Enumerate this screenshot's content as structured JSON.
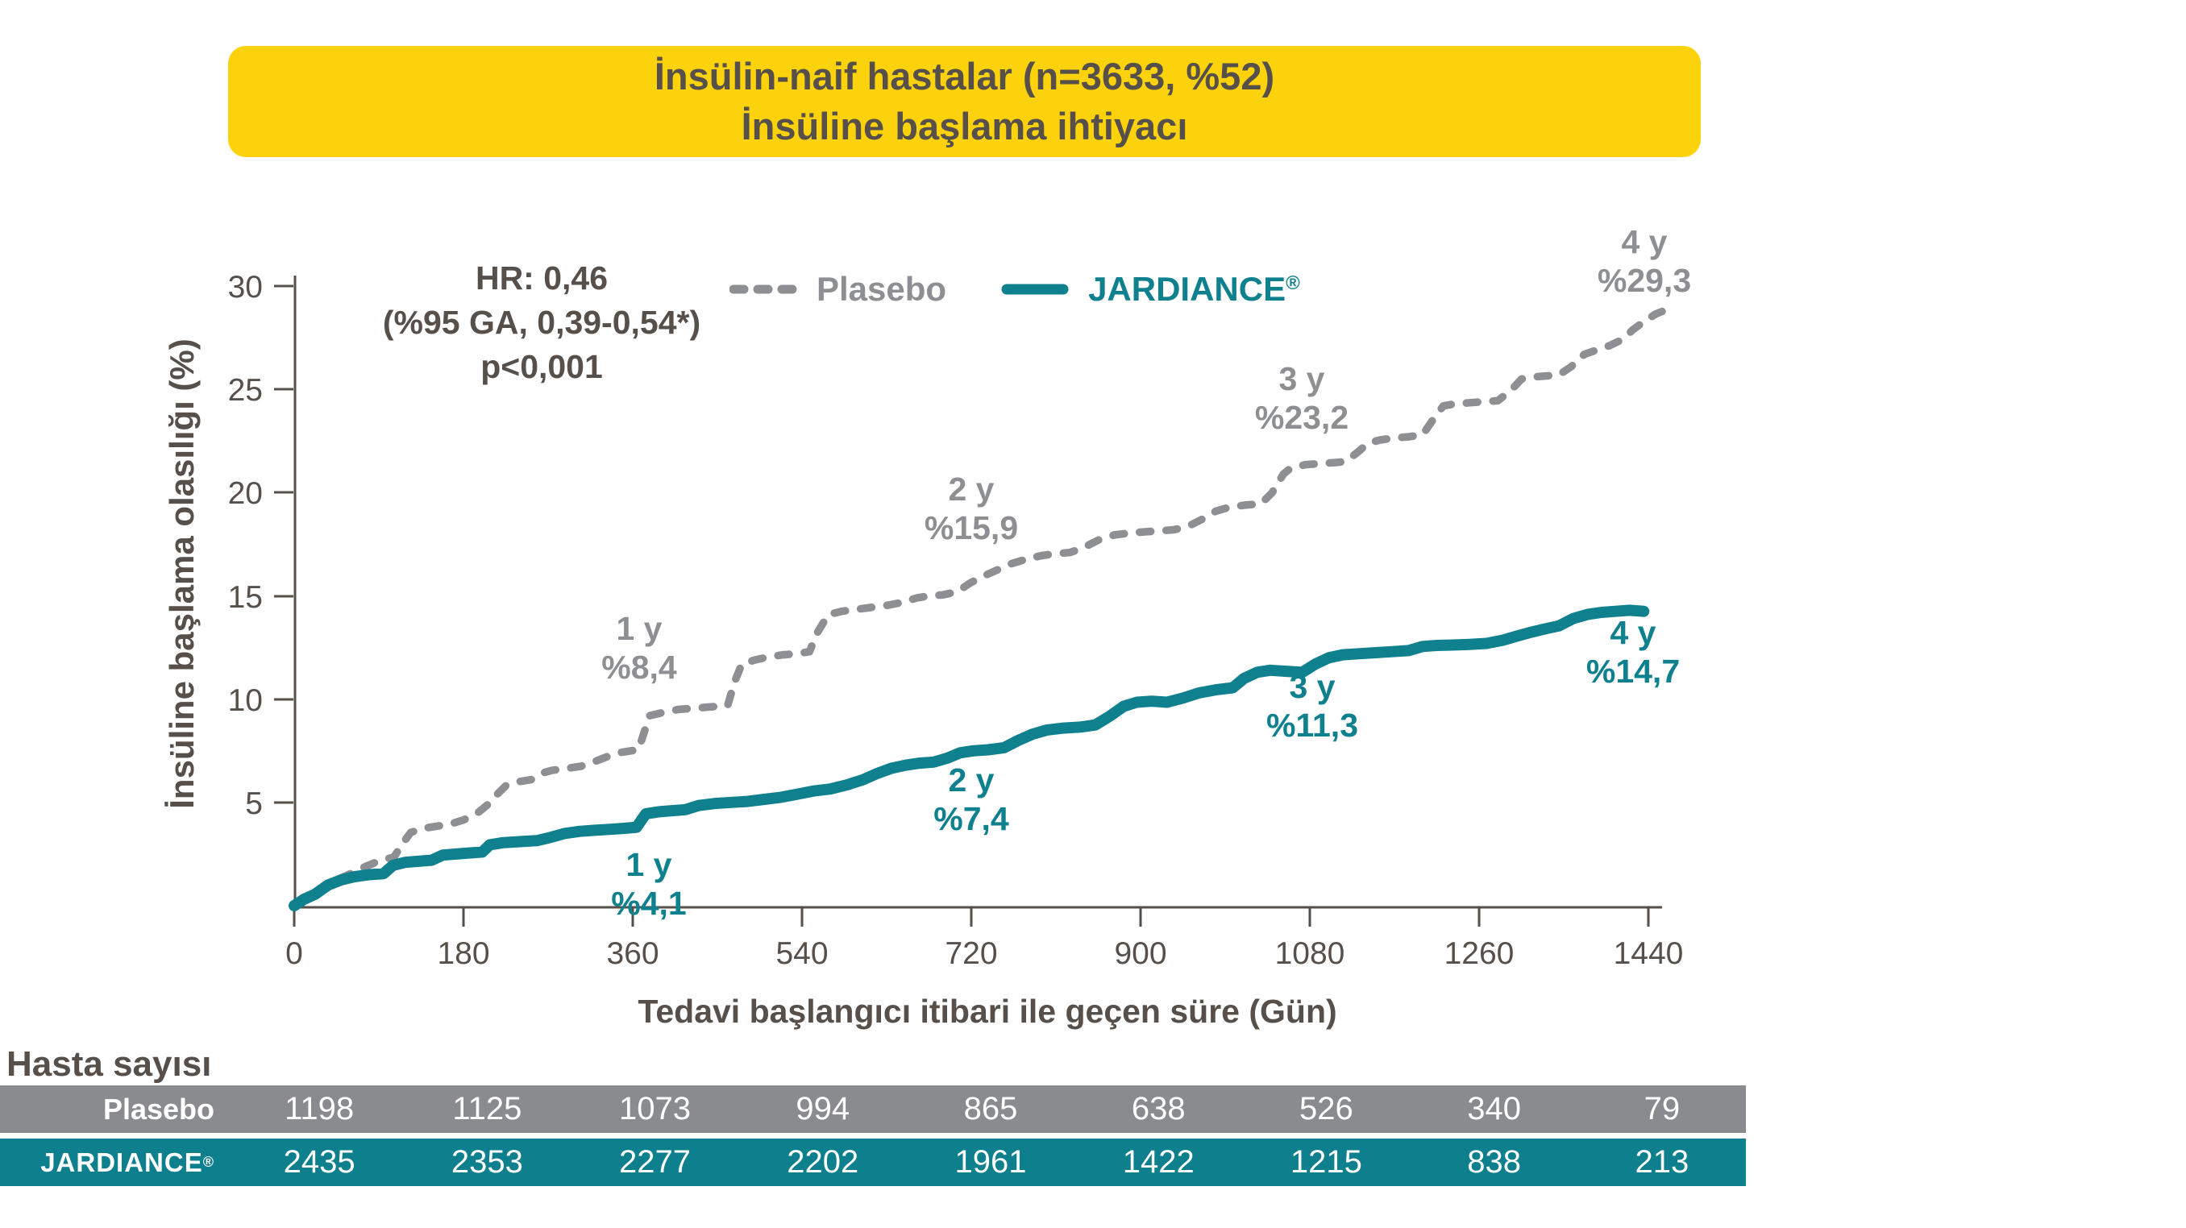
{
  "banner": {
    "line1": "İnsülin-naif hastalar (n=3633, %52)",
    "line2": "İnsüline başlama ihtiyacı"
  },
  "stats": {
    "hr": "HR: 0,46",
    "ci": "(%95 GA, 0,39-0,54*)",
    "p": "p<0,001"
  },
  "legend": {
    "plasebo": "Plasebo",
    "jardiance": "JARDIANCE",
    "jardiance_reg": "®"
  },
  "annotations": {
    "plasebo": [
      {
        "time": "1 y",
        "value": "%8,4"
      },
      {
        "time": "2 y",
        "value": "%15,9"
      },
      {
        "time": "3 y",
        "value": "%23,2"
      },
      {
        "time": "4 y",
        "value": "%29,3"
      }
    ],
    "jardiance": [
      {
        "time": "1 y",
        "value": "%4,1"
      },
      {
        "time": "2 y",
        "value": "%7,4"
      },
      {
        "time": "3 y",
        "value": "%11,3"
      },
      {
        "time": "4 y",
        "value": "%14,7"
      }
    ]
  },
  "risk_table": {
    "title": "Hasta sayısı",
    "rows": [
      {
        "label": "Plasebo",
        "reg": "",
        "values": [
          1198,
          1125,
          1073,
          994,
          865,
          638,
          526,
          340,
          79
        ]
      },
      {
        "label": "JARDIANCE",
        "reg": "®",
        "values": [
          2435,
          2353,
          2277,
          2202,
          1961,
          1422,
          1215,
          838,
          213
        ]
      }
    ]
  },
  "chart_data": {
    "type": "line",
    "title": "İnsülin-naif hastalar (n=3633, %52) – İnsüline başlama ihtiyacı",
    "xlabel": "Tedavi başlangıcı itibari ile geçen süre (Gün)",
    "ylabel": "İnsüline başlama olasılığı (%)",
    "xlim": [
      0,
      1440
    ],
    "ylim": [
      0,
      30
    ],
    "x_ticks": [
      0,
      180,
      360,
      540,
      720,
      900,
      1080,
      1260,
      1440
    ],
    "y_ticks": [
      5,
      10,
      15,
      20,
      25,
      30
    ],
    "grid": false,
    "legend_position": "top",
    "hazard_ratio": 0.46,
    "ci_95": "0,39-0,54",
    "p_value": "<0,001",
    "series": [
      {
        "name": "Plasebo",
        "style": "dashed",
        "color": "#8E8F92",
        "yearly_estimates": {
          "1y": 8.4,
          "2y": 15.9,
          "3y": 23.2,
          "4y": 29.3
        },
        "points": [
          [
            0,
            0
          ],
          [
            14,
            0.35
          ],
          [
            30,
            0.8
          ],
          [
            48,
            1.3
          ],
          [
            62,
            1.6
          ],
          [
            76,
            1.9
          ],
          [
            92,
            2.2
          ],
          [
            106,
            2.35
          ],
          [
            115,
            3.0
          ],
          [
            124,
            3.55
          ],
          [
            138,
            3.75
          ],
          [
            152,
            3.85
          ],
          [
            166,
            3.95
          ],
          [
            180,
            4.15
          ],
          [
            194,
            4.45
          ],
          [
            206,
            4.9
          ],
          [
            216,
            5.4
          ],
          [
            226,
            5.85
          ],
          [
            238,
            6.0
          ],
          [
            252,
            6.1
          ],
          [
            262,
            6.4
          ],
          [
            274,
            6.55
          ],
          [
            290,
            6.65
          ],
          [
            305,
            6.75
          ],
          [
            318,
            6.95
          ],
          [
            332,
            7.2
          ],
          [
            345,
            7.4
          ],
          [
            358,
            7.5
          ],
          [
            366,
            7.55
          ],
          [
            378,
            9.2
          ],
          [
            392,
            9.35
          ],
          [
            408,
            9.5
          ],
          [
            422,
            9.55
          ],
          [
            436,
            9.6
          ],
          [
            450,
            9.65
          ],
          [
            461,
            9.7
          ],
          [
            468,
            10.8
          ],
          [
            476,
            11.7
          ],
          [
            490,
            11.9
          ],
          [
            505,
            12.05
          ],
          [
            520,
            12.15
          ],
          [
            535,
            12.2
          ],
          [
            548,
            12.3
          ],
          [
            556,
            13.2
          ],
          [
            568,
            14.1
          ],
          [
            582,
            14.25
          ],
          [
            598,
            14.35
          ],
          [
            615,
            14.45
          ],
          [
            632,
            14.55
          ],
          [
            648,
            14.7
          ],
          [
            662,
            14.9
          ],
          [
            675,
            15.0
          ],
          [
            690,
            15.05
          ],
          [
            705,
            15.2
          ],
          [
            718,
            15.6
          ],
          [
            730,
            15.9
          ],
          [
            745,
            16.2
          ],
          [
            762,
            16.55
          ],
          [
            780,
            16.8
          ],
          [
            795,
            16.95
          ],
          [
            810,
            17.05
          ],
          [
            825,
            17.1
          ],
          [
            840,
            17.35
          ],
          [
            855,
            17.7
          ],
          [
            872,
            17.95
          ],
          [
            890,
            18.05
          ],
          [
            905,
            18.1
          ],
          [
            920,
            18.15
          ],
          [
            935,
            18.2
          ],
          [
            950,
            18.35
          ],
          [
            965,
            18.7
          ],
          [
            980,
            19.1
          ],
          [
            995,
            19.3
          ],
          [
            1012,
            19.4
          ],
          [
            1028,
            19.45
          ],
          [
            1040,
            20.0
          ],
          [
            1052,
            20.9
          ],
          [
            1060,
            21.2
          ],
          [
            1075,
            21.35
          ],
          [
            1090,
            21.4
          ],
          [
            1105,
            21.45
          ],
          [
            1118,
            21.5
          ],
          [
            1132,
            22.0
          ],
          [
            1142,
            22.4
          ],
          [
            1155,
            22.55
          ],
          [
            1170,
            22.65
          ],
          [
            1185,
            22.7
          ],
          [
            1200,
            22.8
          ],
          [
            1212,
            23.6
          ],
          [
            1222,
            24.2
          ],
          [
            1235,
            24.3
          ],
          [
            1250,
            24.35
          ],
          [
            1265,
            24.4
          ],
          [
            1280,
            24.45
          ],
          [
            1295,
            25.0
          ],
          [
            1305,
            25.5
          ],
          [
            1318,
            25.6
          ],
          [
            1332,
            25.65
          ],
          [
            1345,
            25.7
          ],
          [
            1358,
            26.1
          ],
          [
            1372,
            26.7
          ],
          [
            1385,
            26.9
          ],
          [
            1398,
            27.1
          ],
          [
            1412,
            27.4
          ],
          [
            1424,
            27.9
          ],
          [
            1436,
            28.3
          ],
          [
            1448,
            28.65
          ],
          [
            1456,
            28.8
          ]
        ]
      },
      {
        "name": "JARDIANCE",
        "style": "solid",
        "color": "#0F808D",
        "yearly_estimates": {
          "1y": 4.1,
          "2y": 7.4,
          "3y": 11.3,
          "4y": 14.7
        },
        "points": [
          [
            0,
            0
          ],
          [
            10,
            0.3
          ],
          [
            22,
            0.55
          ],
          [
            36,
            1.0
          ],
          [
            50,
            1.25
          ],
          [
            64,
            1.4
          ],
          [
            80,
            1.5
          ],
          [
            95,
            1.55
          ],
          [
            105,
            1.95
          ],
          [
            118,
            2.1
          ],
          [
            132,
            2.15
          ],
          [
            146,
            2.2
          ],
          [
            158,
            2.45
          ],
          [
            172,
            2.5
          ],
          [
            186,
            2.55
          ],
          [
            200,
            2.6
          ],
          [
            208,
            2.95
          ],
          [
            222,
            3.05
          ],
          [
            240,
            3.1
          ],
          [
            258,
            3.15
          ],
          [
            272,
            3.3
          ],
          [
            288,
            3.5
          ],
          [
            304,
            3.6
          ],
          [
            320,
            3.65
          ],
          [
            336,
            3.7
          ],
          [
            352,
            3.75
          ],
          [
            364,
            3.8
          ],
          [
            374,
            4.45
          ],
          [
            388,
            4.55
          ],
          [
            402,
            4.6
          ],
          [
            416,
            4.65
          ],
          [
            430,
            4.85
          ],
          [
            448,
            4.95
          ],
          [
            465,
            5.0
          ],
          [
            482,
            5.05
          ],
          [
            500,
            5.15
          ],
          [
            518,
            5.25
          ],
          [
            535,
            5.4
          ],
          [
            552,
            5.55
          ],
          [
            570,
            5.65
          ],
          [
            588,
            5.85
          ],
          [
            605,
            6.1
          ],
          [
            620,
            6.4
          ],
          [
            635,
            6.65
          ],
          [
            650,
            6.8
          ],
          [
            665,
            6.9
          ],
          [
            680,
            6.95
          ],
          [
            695,
            7.15
          ],
          [
            708,
            7.4
          ],
          [
            722,
            7.5
          ],
          [
            738,
            7.55
          ],
          [
            755,
            7.65
          ],
          [
            770,
            8.0
          ],
          [
            785,
            8.3
          ],
          [
            800,
            8.5
          ],
          [
            818,
            8.6
          ],
          [
            836,
            8.65
          ],
          [
            852,
            8.75
          ],
          [
            868,
            9.2
          ],
          [
            882,
            9.65
          ],
          [
            896,
            9.85
          ],
          [
            912,
            9.9
          ],
          [
            928,
            9.85
          ],
          [
            945,
            10.05
          ],
          [
            962,
            10.3
          ],
          [
            980,
            10.45
          ],
          [
            998,
            10.55
          ],
          [
            1010,
            11.0
          ],
          [
            1024,
            11.3
          ],
          [
            1038,
            11.4
          ],
          [
            1055,
            11.35
          ],
          [
            1072,
            11.3
          ],
          [
            1086,
            11.7
          ],
          [
            1100,
            12.0
          ],
          [
            1115,
            12.15
          ],
          [
            1132,
            12.2
          ],
          [
            1150,
            12.25
          ],
          [
            1168,
            12.3
          ],
          [
            1185,
            12.35
          ],
          [
            1200,
            12.55
          ],
          [
            1215,
            12.6
          ],
          [
            1232,
            12.62
          ],
          [
            1250,
            12.65
          ],
          [
            1268,
            12.7
          ],
          [
            1285,
            12.85
          ],
          [
            1300,
            13.05
          ],
          [
            1316,
            13.25
          ],
          [
            1330,
            13.4
          ],
          [
            1345,
            13.55
          ],
          [
            1360,
            13.9
          ],
          [
            1375,
            14.1
          ],
          [
            1390,
            14.2
          ],
          [
            1405,
            14.25
          ],
          [
            1420,
            14.3
          ],
          [
            1435,
            14.25
          ]
        ]
      }
    ]
  },
  "colors": {
    "banner_bg": "#FBD20B",
    "dark_text": "#57504A",
    "plasebo": "#8E8F92",
    "jardiance": "#0F808D",
    "plasebo_row_bg": "#8A8B8E",
    "jardiance_row_bg": "#0E7F8C",
    "table_text": "#FFFFFF"
  }
}
